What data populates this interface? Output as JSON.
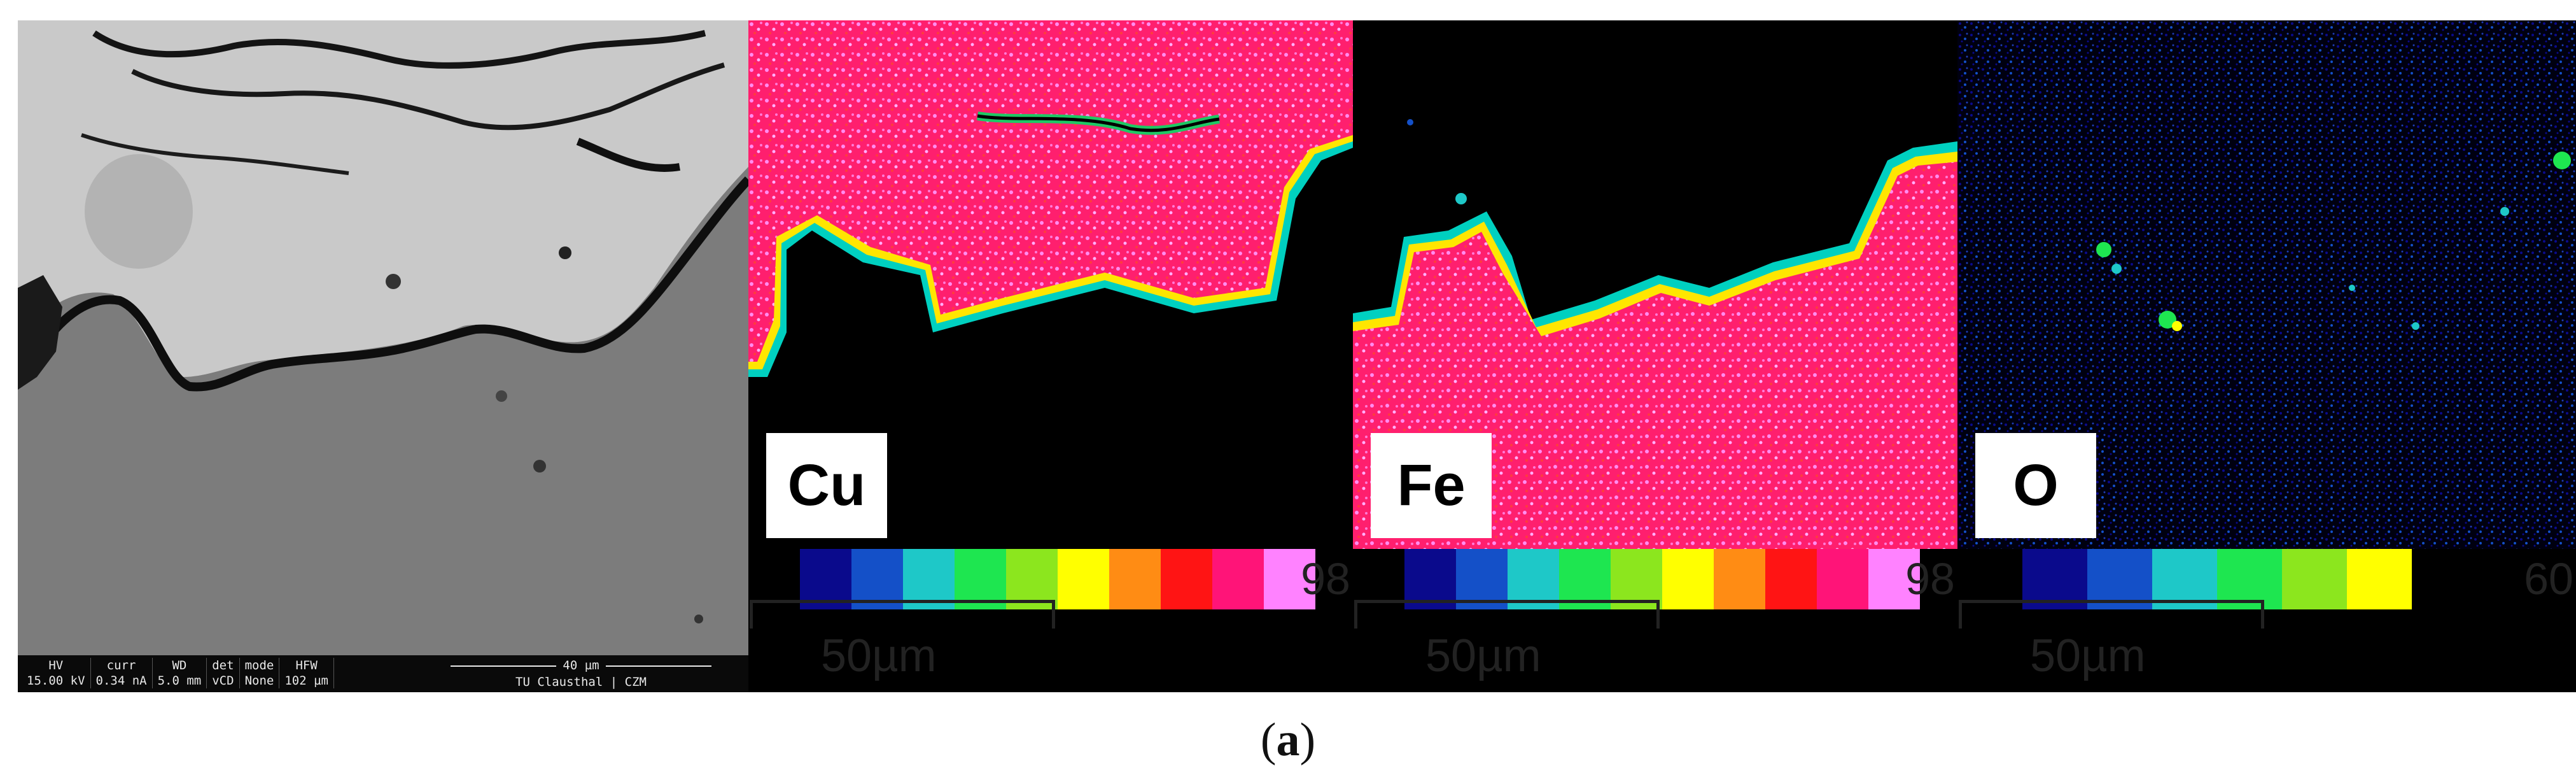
{
  "sem": {
    "info_headers": [
      "HV",
      "curr",
      "WD",
      "det",
      "mode",
      "HFW"
    ],
    "info_values": [
      "15.00 kV",
      "0.34 nA",
      "5.0 mm",
      "vCD",
      "None",
      "102 µm"
    ],
    "scale_label": "40 µm",
    "institution": "TU Clausthal | CZM"
  },
  "maps": [
    {
      "element": "Cu",
      "colorbar_max": "98",
      "scale_label": "50µm"
    },
    {
      "element": "Fe",
      "colorbar_max": "98",
      "scale_label": "50µm"
    },
    {
      "element": "O",
      "colorbar_max": "60",
      "scale_label": "50µm"
    }
  ],
  "colorbar_colors": [
    "#000000",
    "#0a0a8c",
    "#1450c8",
    "#1ec8c8",
    "#1ee650",
    "#8ce61e",
    "#ffff00",
    "#ff8c14",
    "#ff1414",
    "#ff1478",
    "#ff82ff"
  ],
  "colorbar_colors_o": [
    "#000000",
    "#0a0a8c",
    "#1450c8",
    "#1ec8c8",
    "#1ee650",
    "#8ce61e",
    "#ffff00"
  ],
  "caption": {
    "open": "(",
    "letter": "a",
    "close": ")"
  }
}
